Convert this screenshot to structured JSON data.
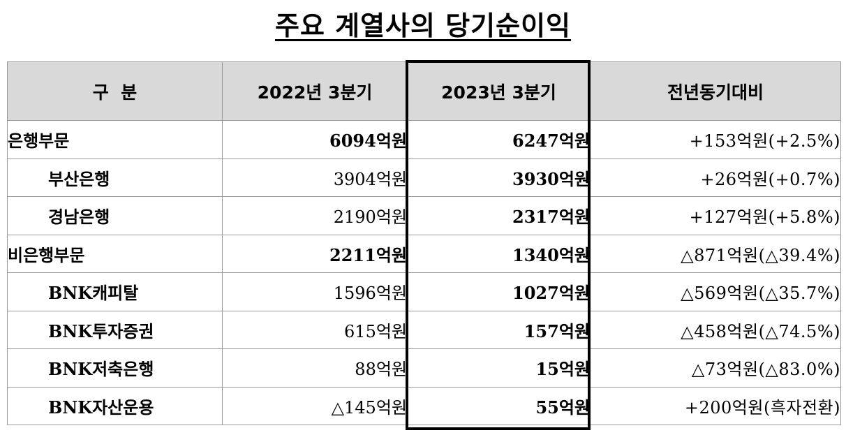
{
  "title": "주요 계열사의 당기순이익",
  "headers": [
    "구  분",
    "2022년 3분기",
    "2023년 3분기",
    "전년동기대비"
  ],
  "rows": [
    {
      "category": "은행부문",
      "sub": false,
      "y2022": "6094억원",
      "y2023": "6247억원",
      "change": "+153억원(+2.5%)"
    },
    {
      "category": "부산은행",
      "sub": true,
      "y2022": "3904억원",
      "y2023": "3930억원",
      "change": "+26억원(+0.7%)"
    },
    {
      "category": "경남은행",
      "sub": true,
      "y2022": "2190억원",
      "y2023": "2317억원",
      "change": "+127억원(+5.8%)"
    },
    {
      "category": "비은행부문",
      "sub": false,
      "y2022": "2211억원",
      "y2023": "1340억원",
      "change": "△871억원(△39.4%)"
    },
    {
      "category": "BNK캐피탈",
      "sub": true,
      "y2022": "1596억원",
      "y2023": "1027억원",
      "change": "△569억원(△35.7%)"
    },
    {
      "category": "BNK투자증권",
      "sub": true,
      "y2022": "615억원",
      "y2023": "157억원",
      "change": "△458억원(△74.5%)"
    },
    {
      "category": "BNK저축은행",
      "sub": true,
      "y2022": "88억원",
      "y2023": "15억원",
      "change": "△73억원(△83.0%)"
    },
    {
      "category": "BNK자산운용",
      "sub": true,
      "y2022": "△145억원",
      "y2023": "55억원",
      "change": "+200억원(흑자전환)"
    }
  ],
  "colors": {
    "header_bg": "#d9d9d9",
    "border": "#9a9a9a",
    "highlight_border": "#000000"
  }
}
